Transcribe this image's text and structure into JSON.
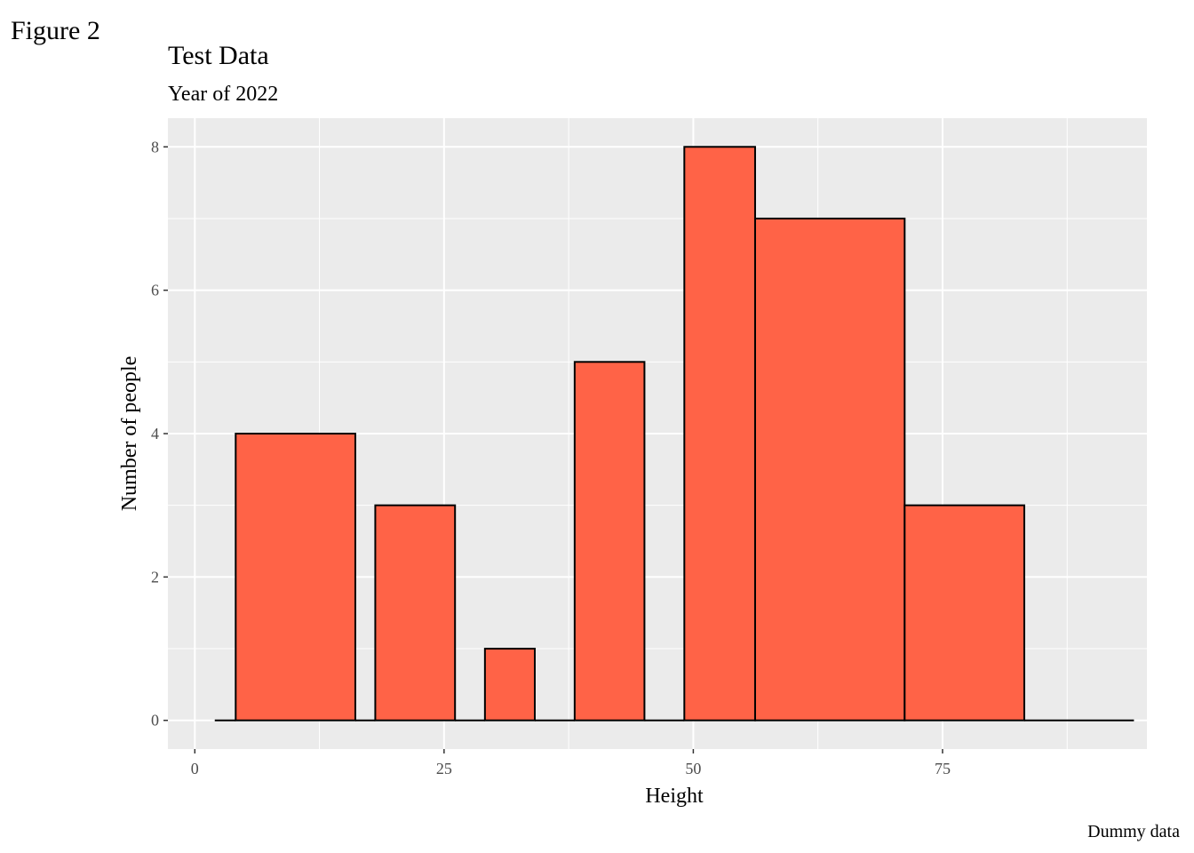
{
  "figure_label": "Figure 2",
  "caption": "Dummy data",
  "colors": {
    "panel_background": "#EBEBEB",
    "grid": "#FFFFFF",
    "bar_fill": "#FF6347",
    "bar_outline": "#000000",
    "tick_text": "#4D4D4D"
  },
  "chart_data": {
    "type": "bar",
    "title": "Test Data",
    "subtitle": "Year of 2022",
    "xlabel": "Height",
    "ylabel": "Number of people",
    "xlim": [
      -2.7,
      95.5
    ],
    "ylim": [
      -0.4,
      8.4
    ],
    "x_ticks": [
      0,
      25,
      50,
      75
    ],
    "x_tick_labels": [
      "0",
      "25",
      "50",
      "75"
    ],
    "y_ticks": [
      0,
      2,
      4,
      6,
      8
    ],
    "y_tick_labels": [
      "0",
      "2",
      "4",
      "6",
      "8"
    ],
    "grid": true,
    "bins": [
      {
        "x0": 2,
        "x1": 4.1,
        "count": 0
      },
      {
        "x0": 4.1,
        "x1": 16.1,
        "count": 4
      },
      {
        "x0": 16.1,
        "x1": 18.1,
        "count": 0
      },
      {
        "x0": 18.1,
        "x1": 26.1,
        "count": 3
      },
      {
        "x0": 26.1,
        "x1": 29.1,
        "count": 0
      },
      {
        "x0": 29.1,
        "x1": 34.1,
        "count": 1
      },
      {
        "x0": 34.1,
        "x1": 38.1,
        "count": 0
      },
      {
        "x0": 38.1,
        "x1": 45.1,
        "count": 5
      },
      {
        "x0": 45.1,
        "x1": 49.1,
        "count": 0
      },
      {
        "x0": 49.1,
        "x1": 56.2,
        "count": 8
      },
      {
        "x0": 56.2,
        "x1": 71.2,
        "count": 7
      },
      {
        "x0": 71.2,
        "x1": 83.2,
        "count": 3
      },
      {
        "x0": 83.2,
        "x1": 94.2,
        "count": 0
      }
    ]
  }
}
